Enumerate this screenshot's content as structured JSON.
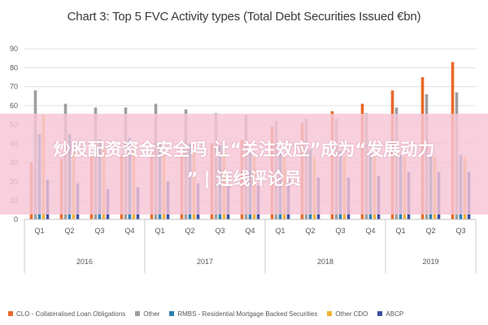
{
  "chart_data": {
    "type": "bar",
    "title": "Chart 3: Top 5 FVC Activity types (Total Debt Securities Issued €bn)",
    "xlabel": "",
    "ylabel": "",
    "ylim": [
      0,
      90
    ],
    "yticks": [
      0,
      10,
      20,
      30,
      40,
      50,
      60,
      70,
      80,
      90
    ],
    "grid": true,
    "legend_position": "bottom",
    "groups": [
      {
        "label": "2016",
        "quarters": [
          "Q1",
          "Q2",
          "Q3",
          "Q4"
        ]
      },
      {
        "label": "2017",
        "quarters": [
          "Q1",
          "Q2",
          "Q3",
          "Q4"
        ]
      },
      {
        "label": "2018",
        "quarters": [
          "Q1",
          "Q2",
          "Q3",
          "Q4"
        ]
      },
      {
        "label": "2019",
        "quarters": [
          "Q1",
          "Q2",
          "Q3"
        ]
      }
    ],
    "categories": [
      "Q1",
      "Q2",
      "Q3",
      "Q4",
      "Q1",
      "Q2",
      "Q3",
      "Q4",
      "Q1",
      "Q2",
      "Q3",
      "Q4",
      "Q1",
      "Q2",
      "Q3"
    ],
    "series": [
      {
        "name": "CLO - Collateralised Loan Obligations",
        "color": "#e8692a",
        "values": [
          30,
          32,
          33,
          34,
          36,
          38,
          40,
          42,
          49,
          51,
          57,
          61,
          68,
          75,
          83
        ]
      },
      {
        "name": "Other",
        "color": "#9e9e9e",
        "values": [
          68,
          61,
          59,
          59,
          61,
          58,
          56,
          55,
          52,
          53,
          53,
          56,
          59,
          66,
          67
        ]
      },
      {
        "name": "RMBS - Residential Mortgage Backed Securities",
        "color": "#2a7fb0",
        "values": [
          45,
          45,
          42,
          43,
          40,
          40,
          39,
          38,
          37,
          37,
          36,
          35,
          34,
          34,
          34
        ]
      },
      {
        "name": "Other CDO",
        "color": "#f2b134",
        "values": [
          55,
          40,
          38,
          37,
          36,
          35,
          35,
          33,
          33,
          33,
          33,
          33,
          33,
          33,
          33
        ]
      },
      {
        "name": "ABCP",
        "color": "#3b4ea0",
        "values": [
          21,
          19,
          16,
          17,
          20,
          19,
          19,
          18,
          22,
          22,
          22,
          23,
          25,
          25,
          25
        ]
      }
    ]
  },
  "overlay": {
    "line1": "炒股配资资金安全吗 让“关注效应”成为“发展动力",
    "line2": "” | 连线评论员",
    "color": "#f7c4d6"
  }
}
